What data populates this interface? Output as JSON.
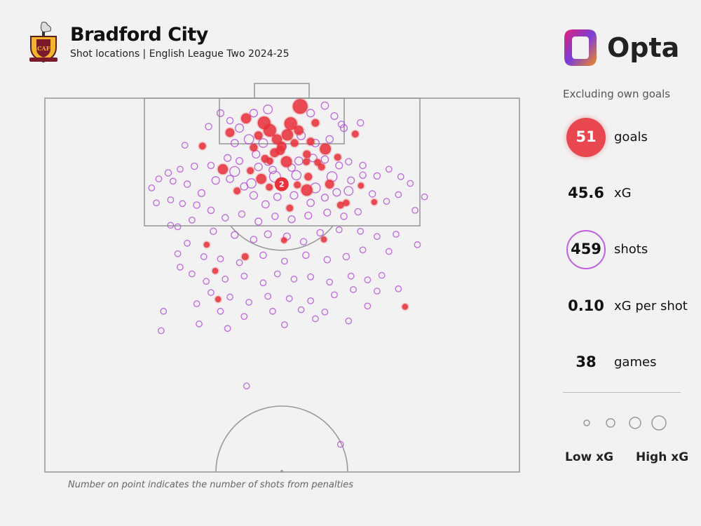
{
  "header": {
    "title": "Bradford City",
    "subtitle": "Shot locations | English League Two 2024-25",
    "crest_text": "BCAFC"
  },
  "brand": {
    "name": "Opta"
  },
  "panel": {
    "note": "Excluding own goals",
    "stats": [
      {
        "value": "51",
        "label": "goals"
      },
      {
        "value": "45.6",
        "label": "xG"
      },
      {
        "value": "459",
        "label": "shots"
      },
      {
        "value": "0.10",
        "label": "xG per shot"
      },
      {
        "value": "38",
        "label": "games"
      }
    ],
    "legend": {
      "low": "Low xG",
      "high": "High xG",
      "sizes": [
        0.02,
        0.08,
        0.18,
        0.32
      ]
    }
  },
  "footnote": "Number on point indicates the number of shots from penalties",
  "colors": {
    "goal": "#e8323c",
    "shot": "#b54fd6",
    "line": "#9a9a9a",
    "bg": "#f2f2f2"
  },
  "chart_data": {
    "type": "scatter",
    "title": "Bradford City",
    "subtitle": "Shot locations | English League Two 2024-25",
    "coordinate_system": "x = 0-100 across pitch width (left to right), y = 0-50 distance from goal line (Opta half-pitch units)",
    "legend": [
      "Low xG",
      "High xG"
    ],
    "goals": [
      [
        53.8,
        1.1,
        0.45
      ],
      [
        42.4,
        2.7,
        0.15
      ],
      [
        39.0,
        4.6,
        0.1
      ],
      [
        46.2,
        3.3,
        0.3
      ],
      [
        47.4,
        4.3,
        0.3
      ],
      [
        51.8,
        3.4,
        0.3
      ],
      [
        53.5,
        4.3,
        0.12
      ],
      [
        51.1,
        4.9,
        0.22
      ],
      [
        48.9,
        5.5,
        0.15
      ],
      [
        49.9,
        6.4,
        0.1
      ],
      [
        48.4,
        7.3,
        0.1
      ],
      [
        57.0,
        3.3,
        0.06
      ],
      [
        59.1,
        6.8,
        0.2
      ],
      [
        65.4,
        4.8,
        0.04
      ],
      [
        33.2,
        6.4,
        0.04
      ],
      [
        37.5,
        9.5,
        0.15
      ],
      [
        45.6,
        10.8,
        0.15
      ],
      [
        47.3,
        11.9,
        0.04
      ],
      [
        50.9,
        8.5,
        0.2
      ],
      [
        55.2,
        7.5,
        0.06
      ],
      [
        55.1,
        8.5,
        0.04
      ],
      [
        57.5,
        8.6,
        0.04
      ],
      [
        55.5,
        10.5,
        0.06
      ],
      [
        55.2,
        12.3,
        0.22
      ],
      [
        53.2,
        11.6,
        0.04
      ],
      [
        60.0,
        11.5,
        0.1
      ],
      [
        61.7,
        7.9,
        0.04
      ],
      [
        66.6,
        11.7,
        0.02
      ],
      [
        69.4,
        13.9,
        0.02
      ],
      [
        62.3,
        14.3,
        0.04
      ],
      [
        51.6,
        14.7,
        0.04
      ],
      [
        46.4,
        8.1,
        0.06
      ],
      [
        47.4,
        8.4,
        0.04
      ],
      [
        34.1,
        19.6,
        0.02
      ],
      [
        42.2,
        21.2,
        0.04
      ],
      [
        50.4,
        19.0,
        0.02
      ],
      [
        58.8,
        18.9,
        0.02
      ],
      [
        35.9,
        23.1,
        0.02
      ],
      [
        36.5,
        26.9,
        0.02
      ],
      [
        75.9,
        27.9,
        0.02
      ],
      [
        49.6,
        7.0,
        0.1
      ],
      [
        52.6,
        6.0,
        0.06
      ],
      [
        44.0,
        6.6,
        0.06
      ],
      [
        45.0,
        5.0,
        0.08
      ],
      [
        56.0,
        5.8,
        0.06
      ],
      [
        43.3,
        9.7,
        0.04
      ],
      [
        58.3,
        9.2,
        0.04
      ],
      [
        40.5,
        12.4,
        0.04
      ],
      [
        63.5,
        14.0,
        0.03
      ]
    ],
    "penalty_goals": {
      "x": 49.9,
      "y": 11.5,
      "xg": 0.79,
      "count": "2"
    },
    "shots": [
      [
        41,
        4,
        0.08
      ],
      [
        44,
        2,
        0.06
      ],
      [
        47,
        1.5,
        0.1
      ],
      [
        56,
        2,
        0.06
      ],
      [
        59,
        1,
        0.05
      ],
      [
        61,
        2.4,
        0.04
      ],
      [
        62.5,
        3.5,
        0.03
      ],
      [
        40,
        6,
        0.05
      ],
      [
        43,
        5.5,
        0.12
      ],
      [
        46,
        6,
        0.1
      ],
      [
        50,
        6.5,
        0.07
      ],
      [
        54,
        5,
        0.08
      ],
      [
        57,
        6,
        0.06
      ],
      [
        60,
        5.5,
        0.05
      ],
      [
        63,
        4,
        0.04
      ],
      [
        39,
        3,
        0.03
      ],
      [
        37,
        2,
        0.04
      ],
      [
        44.5,
        7.5,
        0.06
      ],
      [
        47,
        8.5,
        0.05
      ],
      [
        45,
        9.2,
        0.06
      ],
      [
        48,
        9.6,
        0.05
      ],
      [
        52,
        9.3,
        0.05
      ],
      [
        53.5,
        8.4,
        0.07
      ],
      [
        56.5,
        8,
        0.06
      ],
      [
        59,
        8.2,
        0.05
      ],
      [
        62,
        9,
        0.04
      ],
      [
        64,
        8.5,
        0.03
      ],
      [
        41,
        8.4,
        0.04
      ],
      [
        38.5,
        8,
        0.04
      ],
      [
        35,
        9,
        0.03
      ],
      [
        31.5,
        9.1,
        0.03
      ],
      [
        28.5,
        9.5,
        0.02
      ],
      [
        26,
        10,
        0.03
      ],
      [
        24,
        10.8,
        0.02
      ],
      [
        22.5,
        12,
        0.02
      ],
      [
        30,
        11.5,
        0.03
      ],
      [
        33,
        12.7,
        0.04
      ],
      [
        36,
        11,
        0.06
      ],
      [
        39,
        10.8,
        0.05
      ],
      [
        42,
        11.8,
        0.05
      ],
      [
        44,
        13,
        0.06
      ],
      [
        46.5,
        14.2,
        0.05
      ],
      [
        49,
        13.2,
        0.05
      ],
      [
        52.5,
        13,
        0.06
      ],
      [
        56,
        14,
        0.05
      ],
      [
        59,
        13.3,
        0.04
      ],
      [
        61.5,
        12.6,
        0.06
      ],
      [
        64.5,
        11,
        0.04
      ],
      [
        67,
        10.3,
        0.03
      ],
      [
        70,
        10.4,
        0.03
      ],
      [
        72.5,
        9.5,
        0.02
      ],
      [
        75,
        10.5,
        0.02
      ],
      [
        77,
        11.4,
        0.02
      ],
      [
        69,
        12.8,
        0.03
      ],
      [
        72,
        13.8,
        0.02
      ],
      [
        74.5,
        12.9,
        0.02
      ],
      [
        78,
        15,
        0.02
      ],
      [
        66,
        15.2,
        0.03
      ],
      [
        63,
        15.8,
        0.03
      ],
      [
        59.5,
        15.3,
        0.04
      ],
      [
        55.5,
        15.7,
        0.04
      ],
      [
        52,
        16.2,
        0.04
      ],
      [
        48.5,
        15.8,
        0.03
      ],
      [
        45,
        16.5,
        0.04
      ],
      [
        41.5,
        15.5,
        0.03
      ],
      [
        38,
        16,
        0.03
      ],
      [
        35,
        15,
        0.03
      ],
      [
        32,
        14.3,
        0.03
      ],
      [
        29,
        14.1,
        0.02
      ],
      [
        26.5,
        13.6,
        0.02
      ],
      [
        23.5,
        14,
        0.02
      ],
      [
        31,
        16.3,
        0.02
      ],
      [
        28,
        17.2,
        0.02
      ],
      [
        35.5,
        17.8,
        0.03
      ],
      [
        40,
        18.3,
        0.04
      ],
      [
        44,
        18.9,
        0.03
      ],
      [
        47,
        18.2,
        0.04
      ],
      [
        51,
        18.5,
        0.04
      ],
      [
        54.5,
        19.2,
        0.03
      ],
      [
        58,
        18,
        0.03
      ],
      [
        62,
        17.6,
        0.02
      ],
      [
        66.5,
        17.8,
        0.02
      ],
      [
        70,
        18.5,
        0.02
      ],
      [
        74,
        18.2,
        0.02
      ],
      [
        78.5,
        19.6,
        0.02
      ],
      [
        72.5,
        20.5,
        0.02
      ],
      [
        67,
        20.3,
        0.02
      ],
      [
        63.5,
        21.2,
        0.03
      ],
      [
        59.5,
        21.6,
        0.03
      ],
      [
        55,
        21,
        0.03
      ],
      [
        50.5,
        21.8,
        0.02
      ],
      [
        46,
        21,
        0.03
      ],
      [
        41,
        22,
        0.02
      ],
      [
        37,
        21.5,
        0.02
      ],
      [
        33.5,
        21.2,
        0.02
      ],
      [
        30,
        19.4,
        0.02
      ],
      [
        28,
        20.8,
        0.02
      ],
      [
        31,
        23.5,
        0.02
      ],
      [
        34,
        24.5,
        0.02
      ],
      [
        38,
        24.2,
        0.02
      ],
      [
        42,
        23.8,
        0.02
      ],
      [
        46,
        24.7,
        0.02
      ],
      [
        49,
        23.5,
        0.02
      ],
      [
        52.5,
        24.2,
        0.02
      ],
      [
        56,
        23.9,
        0.02
      ],
      [
        60,
        24.6,
        0.02
      ],
      [
        64.5,
        23.8,
        0.02
      ],
      [
        68,
        24.3,
        0.02
      ],
      [
        71,
        23.7,
        0.02
      ],
      [
        74.5,
        25.5,
        0.02
      ],
      [
        70,
        25.8,
        0.02
      ],
      [
        65,
        25.6,
        0.02
      ],
      [
        61,
        26.3,
        0.02
      ],
      [
        56,
        27.1,
        0.02
      ],
      [
        51.5,
        26.8,
        0.02
      ],
      [
        47,
        26.5,
        0.02
      ],
      [
        43,
        27.3,
        0.02
      ],
      [
        39,
        26.6,
        0.02
      ],
      [
        35,
        26,
        0.02
      ],
      [
        32,
        27.5,
        0.02
      ],
      [
        37,
        28.5,
        0.02
      ],
      [
        42,
        29.2,
        0.02
      ],
      [
        48,
        28.5,
        0.02
      ],
      [
        54,
        28.3,
        0.02
      ],
      [
        59,
        28.6,
        0.02
      ],
      [
        64,
        29.8,
        0.02
      ],
      [
        68,
        27.8,
        0.02
      ],
      [
        25,
        28.5,
        0.02
      ],
      [
        24.5,
        31.1,
        0.02
      ],
      [
        32.5,
        30.2,
        0.02
      ],
      [
        38.5,
        30.8,
        0.02
      ],
      [
        50.5,
        30.3,
        0.02
      ],
      [
        57,
        29.5,
        0.02
      ],
      [
        42.5,
        38.5,
        0.02
      ],
      [
        62.3,
        46.3,
        0.02
      ],
      [
        28.5,
        22.6,
        0.02
      ],
      [
        26.5,
        17,
        0.02
      ],
      [
        80,
        13.2,
        0.02
      ],
      [
        29.5,
        6.3,
        0.02
      ],
      [
        27,
        11.1,
        0.02
      ],
      [
        34.5,
        3.8,
        0.03
      ],
      [
        66.5,
        3.3,
        0.03
      ],
      [
        67,
        9,
        0.03
      ],
      [
        48.5,
        10.5,
        0.2
      ],
      [
        43.5,
        11.4,
        0.12
      ],
      [
        57,
        12,
        0.14
      ],
      [
        60.5,
        10.5,
        0.15
      ],
      [
        53,
        10.3,
        0.12
      ],
      [
        40,
        9.8,
        0.14
      ],
      [
        64,
        12.4,
        0.1
      ]
    ]
  }
}
